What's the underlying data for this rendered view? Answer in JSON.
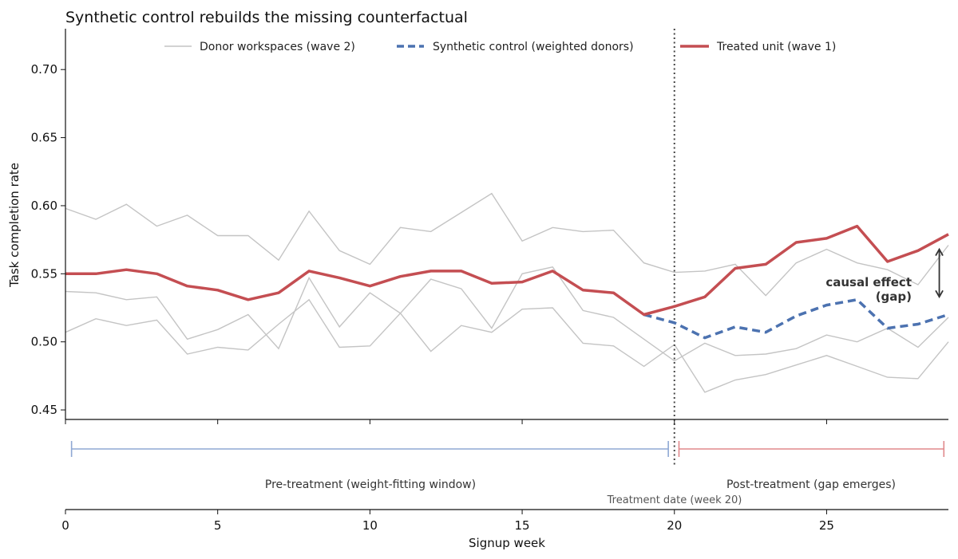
{
  "chart_data": {
    "type": "line",
    "title": "Synthetic control rebuilds the missing counterfactual",
    "xlabel": "Signup week",
    "ylabel": "Task completion rate",
    "xlim": [
      0,
      29
    ],
    "ylim": [
      0.443,
      0.73
    ],
    "x_ticks": [
      0,
      5,
      10,
      15,
      20,
      25
    ],
    "y_ticks": [
      0.45,
      0.5,
      0.55,
      0.6,
      0.65,
      0.7
    ],
    "legend_position": "top",
    "colors": {
      "donor": "#c4c4c4",
      "synthetic": "#4c72b0",
      "treated": "#c44e52",
      "pre_bracket": "#8fa8d4",
      "post_bracket": "#e0898c",
      "annotation": "#333333"
    },
    "series": [
      {
        "name": "Donor workspaces (wave 2)",
        "role": "donor",
        "lines": [
          {
            "x": [
              0,
              1,
              2,
              3,
              4,
              5,
              6,
              7,
              8,
              9,
              10,
              11,
              12,
              13,
              14,
              15,
              16,
              17,
              18,
              19,
              20,
              21,
              22,
              23,
              24,
              25,
              26,
              27,
              28,
              29
            ],
            "y": [
              0.598,
              0.59,
              0.601,
              0.585,
              0.593,
              0.578,
              0.578,
              0.56,
              0.596,
              0.567,
              0.557,
              0.584,
              0.581,
              0.595,
              0.609,
              0.574,
              0.584,
              0.581,
              0.582,
              0.558,
              0.551,
              0.552,
              0.557,
              0.534,
              0.558,
              0.568,
              0.558,
              0.553,
              0.542,
              0.571
            ]
          },
          {
            "x": [
              0,
              1,
              2,
              3,
              4,
              5,
              6,
              7,
              8,
              9,
              10,
              11,
              12,
              13,
              14,
              15,
              16,
              17,
              18,
              19,
              20,
              21,
              22,
              23,
              24,
              25,
              26,
              27,
              28,
              29
            ],
            "y": [
              0.537,
              0.536,
              0.531,
              0.533,
              0.502,
              0.509,
              0.52,
              0.495,
              0.547,
              0.511,
              0.536,
              0.521,
              0.546,
              0.539,
              0.51,
              0.55,
              0.555,
              0.523,
              0.518,
              0.502,
              0.486,
              0.499,
              0.49,
              0.491,
              0.495,
              0.505,
              0.5,
              0.51,
              0.496,
              0.518
            ]
          },
          {
            "x": [
              0,
              1,
              2,
              3,
              4,
              5,
              6,
              7,
              8,
              9,
              10,
              11,
              12,
              13,
              14,
              15,
              16,
              17,
              18,
              19,
              20,
              21,
              22,
              23,
              24,
              25,
              26,
              27,
              28,
              29
            ],
            "y": [
              0.507,
              0.517,
              0.512,
              0.516,
              0.491,
              0.496,
              0.494,
              0.513,
              0.531,
              0.496,
              0.497,
              0.521,
              0.493,
              0.512,
              0.507,
              0.524,
              0.525,
              0.499,
              0.497,
              0.482,
              0.498,
              0.463,
              0.472,
              0.476,
              0.483,
              0.49,
              0.482,
              0.474,
              0.473,
              0.5
            ]
          }
        ]
      },
      {
        "name": "Synthetic control (weighted donors)",
        "role": "synthetic",
        "x": [
          19,
          20,
          21,
          22,
          23,
          24,
          25,
          26,
          27,
          28,
          29
        ],
        "y": [
          0.52,
          0.514,
          0.503,
          0.511,
          0.507,
          0.519,
          0.527,
          0.531,
          0.51,
          0.513,
          0.52
        ]
      },
      {
        "name": "Treated unit (wave 1)",
        "role": "treated",
        "x": [
          0,
          1,
          2,
          3,
          4,
          5,
          6,
          7,
          8,
          9,
          10,
          11,
          12,
          13,
          14,
          15,
          16,
          17,
          18,
          19,
          20,
          21,
          22,
          23,
          24,
          25,
          26,
          27,
          28,
          29
        ],
        "y": [
          0.55,
          0.55,
          0.553,
          0.55,
          0.541,
          0.538,
          0.531,
          0.536,
          0.552,
          0.547,
          0.541,
          0.548,
          0.552,
          0.552,
          0.543,
          0.544,
          0.552,
          0.538,
          0.536,
          0.52,
          0.526,
          0.533,
          0.554,
          0.557,
          0.573,
          0.576,
          0.585,
          0.559,
          0.567,
          0.579
        ]
      }
    ],
    "treatment": {
      "week": 20,
      "label": "Treatment date (week 20)"
    },
    "annotation": {
      "text_line1": "causal effect",
      "text_line2": "(gap)",
      "x": 28.7,
      "y_from": 0.533,
      "y_to": 0.568
    },
    "periods": [
      {
        "label": "Pre-treatment (weight-fitting window)",
        "from": 0.2,
        "to": 19.8,
        "role": "pre"
      },
      {
        "label": "Post-treatment (gap emerges)",
        "from": 20.15,
        "to": 28.85,
        "role": "post"
      }
    ]
  }
}
